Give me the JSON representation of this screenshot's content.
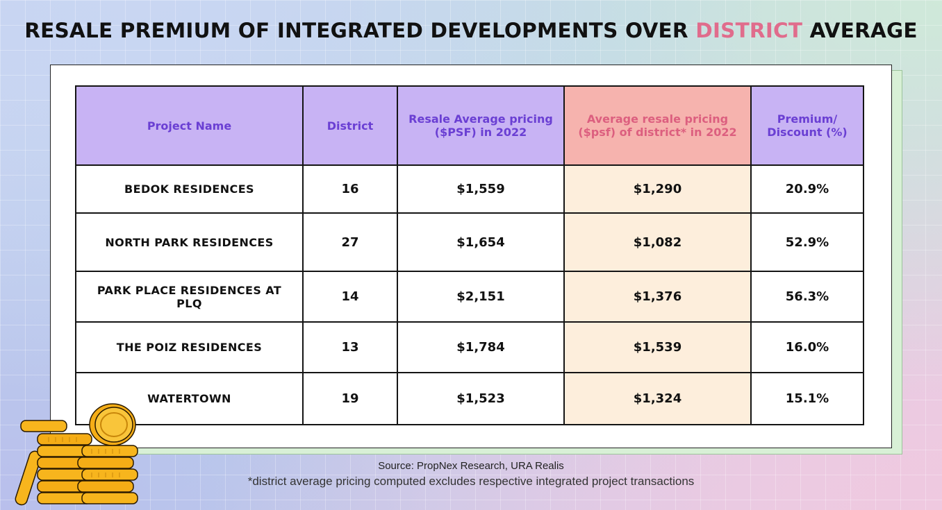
{
  "title": {
    "before": "RESALE PREMIUM OF INTEGRATED DEVELOPMENTS OVER ",
    "highlight": "DISTRICT",
    "after": " AVERAGE",
    "highlight_color": "#e06c8c"
  },
  "table": {
    "headers": {
      "name": "Project Name",
      "district": "District",
      "resale_line1": "Resale Average pricing",
      "resale_line2": "($PSF) in 2022",
      "district_avg_line1": "Average resale pricing",
      "district_avg_line2": "($psf) of district* in 2022",
      "premium_line1": "Premium/",
      "premium_line2": "Discount (%)"
    },
    "rows": [
      {
        "name": "BEDOK RESIDENCES",
        "district": "16",
        "resale": "$1,559",
        "district_avg": "$1,290",
        "premium": "20.9%"
      },
      {
        "name": "NORTH PARK RESIDENCES",
        "district": "27",
        "resale": "$1,654",
        "district_avg": "$1,082",
        "premium": "52.9%"
      },
      {
        "name": "PARK PLACE RESIDENCES AT PLQ",
        "district": "14",
        "resale": "$2,151",
        "district_avg": "$1,376",
        "premium": "56.3%"
      },
      {
        "name": "THE POIZ RESIDENCES",
        "district": "13",
        "resale": "$1,784",
        "district_avg": "$1,539",
        "premium": "16.0%"
      },
      {
        "name": "WATERTOWN",
        "district": "19",
        "resale": "$1,523",
        "district_avg": "$1,324",
        "premium": "15.1%"
      }
    ],
    "colors": {
      "header_bg": "#c8b3f4",
      "header_text": "#6a3fd3",
      "district_avg_header_bg": "#f6b3ae",
      "district_avg_header_text": "#dc5f7f",
      "district_avg_cell_bg": "#fdeedc"
    }
  },
  "footer": {
    "source": "Source: PropNex Research, URA Realis",
    "note": "*district average pricing computed excludes respective integrated project transactions"
  },
  "decoration": {
    "icon": "coin-stack-icon",
    "coin_color": "#f7b51d"
  }
}
